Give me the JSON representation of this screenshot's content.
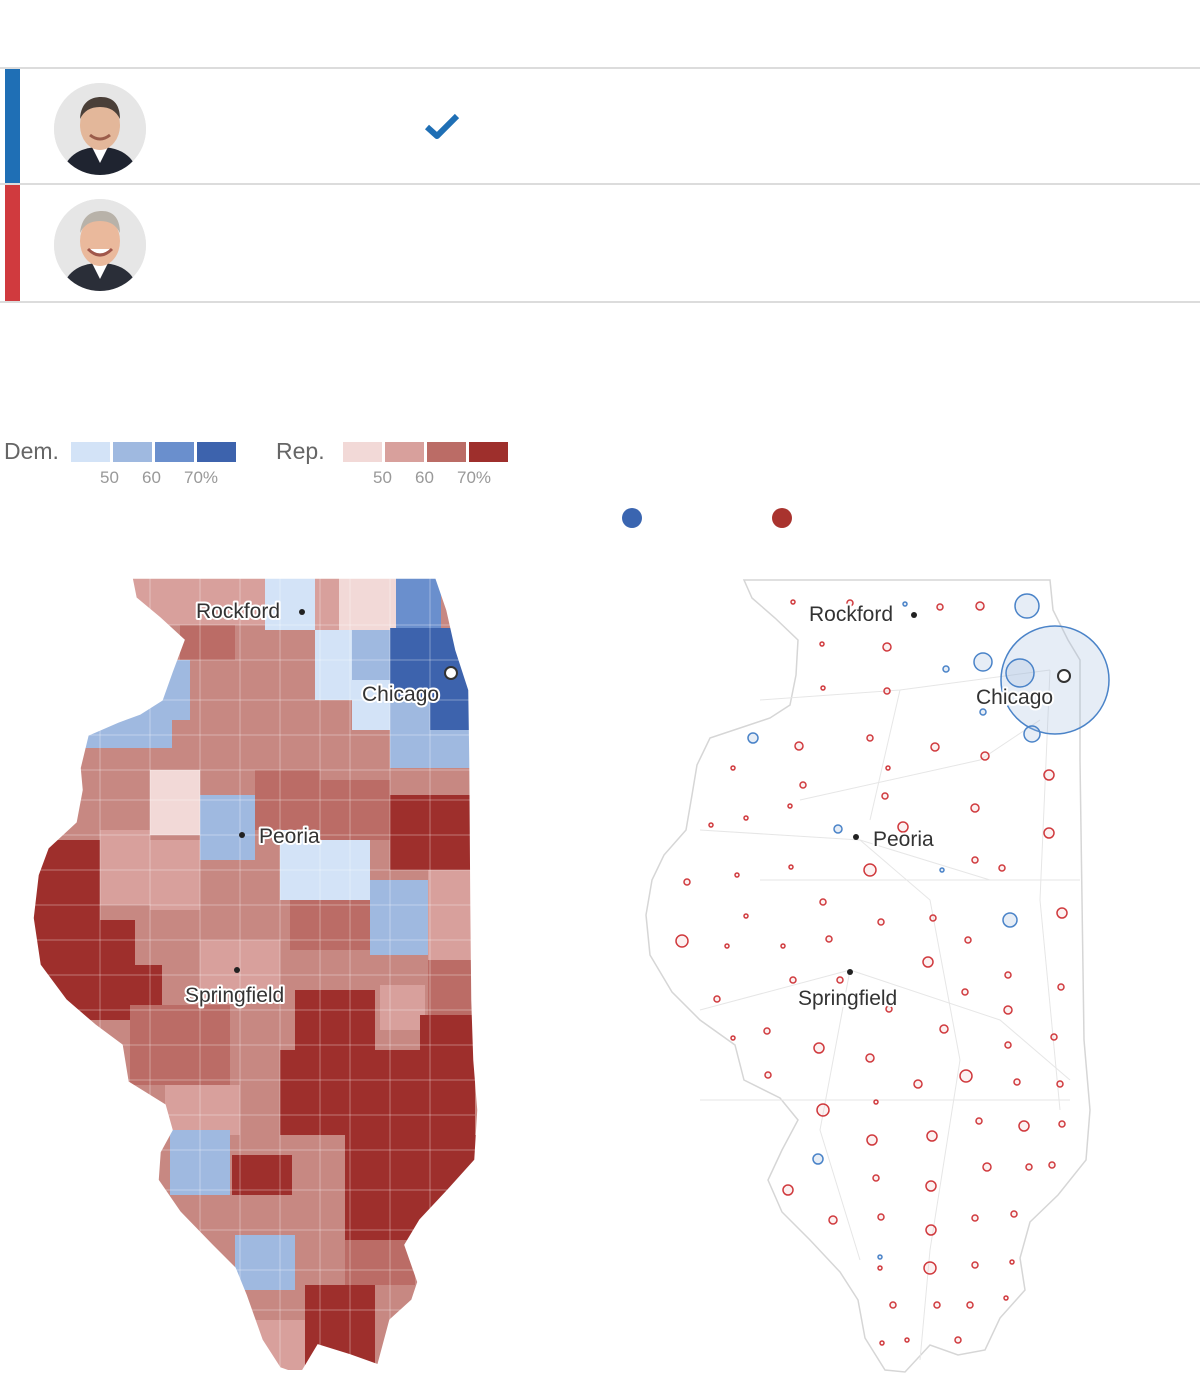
{
  "colors": {
    "dem_bar": "#1f6fb5",
    "rep_bar": "#d03a3e",
    "dem_scale": [
      "#d3e3f7",
      "#9fb9e0",
      "#6a8fcd",
      "#3d63ad"
    ],
    "rep_scale": [
      "#f2d9d7",
      "#d8a09c",
      "#bb6c66",
      "#9e2f2c"
    ],
    "dem_dot": "#3a65b0",
    "rep_dot": "#a9332e"
  },
  "candidates": [
    {
      "party": "Democrat",
      "winner": true,
      "avatar_icon": "candidate-photo"
    },
    {
      "party": "Republican",
      "winner": false,
      "avatar_icon": "candidate-photo"
    }
  ],
  "legend": {
    "dem_label": "Dem.",
    "rep_label": "Rep.",
    "ticks": [
      "50",
      "60",
      "70%"
    ]
  },
  "maps": {
    "cities": [
      "Rockford",
      "Chicago",
      "Peoria",
      "Springfield"
    ]
  }
}
